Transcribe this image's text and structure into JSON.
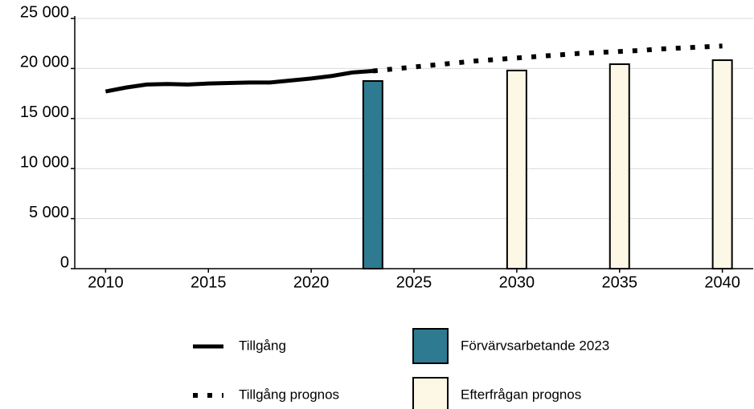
{
  "chart_data": {
    "type": "line",
    "xlim": [
      2008.5,
      2041.5
    ],
    "xticks": [
      2010,
      2015,
      2020,
      2025,
      2030,
      2035,
      2040
    ],
    "ylim": [
      0,
      25000
    ],
    "yticks": [
      {
        "value": 0,
        "label": "0"
      },
      {
        "value": 5000,
        "label": "5 000"
      },
      {
        "value": 10000,
        "label": "10 000"
      },
      {
        "value": 15000,
        "label": "15 000"
      },
      {
        "value": 20000,
        "label": "20 000"
      },
      {
        "value": 25000,
        "label": "25 000"
      }
    ],
    "grid": true,
    "legend": "bottom",
    "series": [
      {
        "name": "Tillgång",
        "type": "line",
        "style": "solid",
        "color": "#000000",
        "x": [
          2010,
          2011,
          2012,
          2013,
          2014,
          2015,
          2016,
          2017,
          2018,
          2019,
          2020,
          2021,
          2022,
          2023
        ],
        "values": [
          17700,
          18100,
          18400,
          18450,
          18400,
          18500,
          18550,
          18600,
          18600,
          18800,
          19000,
          19250,
          19600,
          19750
        ]
      },
      {
        "name": "Tillgång prognos",
        "type": "line",
        "style": "dotted",
        "color": "#000000",
        "x": [
          2023,
          2024,
          2025,
          2026,
          2027,
          2028,
          2029,
          2030,
          2031,
          2032,
          2033,
          2034,
          2035,
          2036,
          2037,
          2038,
          2039,
          2040
        ],
        "values": [
          19750,
          19950,
          20150,
          20350,
          20550,
          20750,
          20900,
          21050,
          21200,
          21350,
          21500,
          21600,
          21700,
          21800,
          21950,
          22050,
          22150,
          22250
        ]
      },
      {
        "name": "Förvärvsarbetande 2023",
        "type": "bar",
        "color": "#2e7b91",
        "x": [
          2023
        ],
        "values": [
          18750
        ]
      },
      {
        "name": "Efterfrågan prognos",
        "type": "bar",
        "color": "#fdf8e6",
        "x": [
          2030,
          2035,
          2040
        ],
        "values": [
          19800,
          20430,
          20830
        ]
      }
    ]
  }
}
